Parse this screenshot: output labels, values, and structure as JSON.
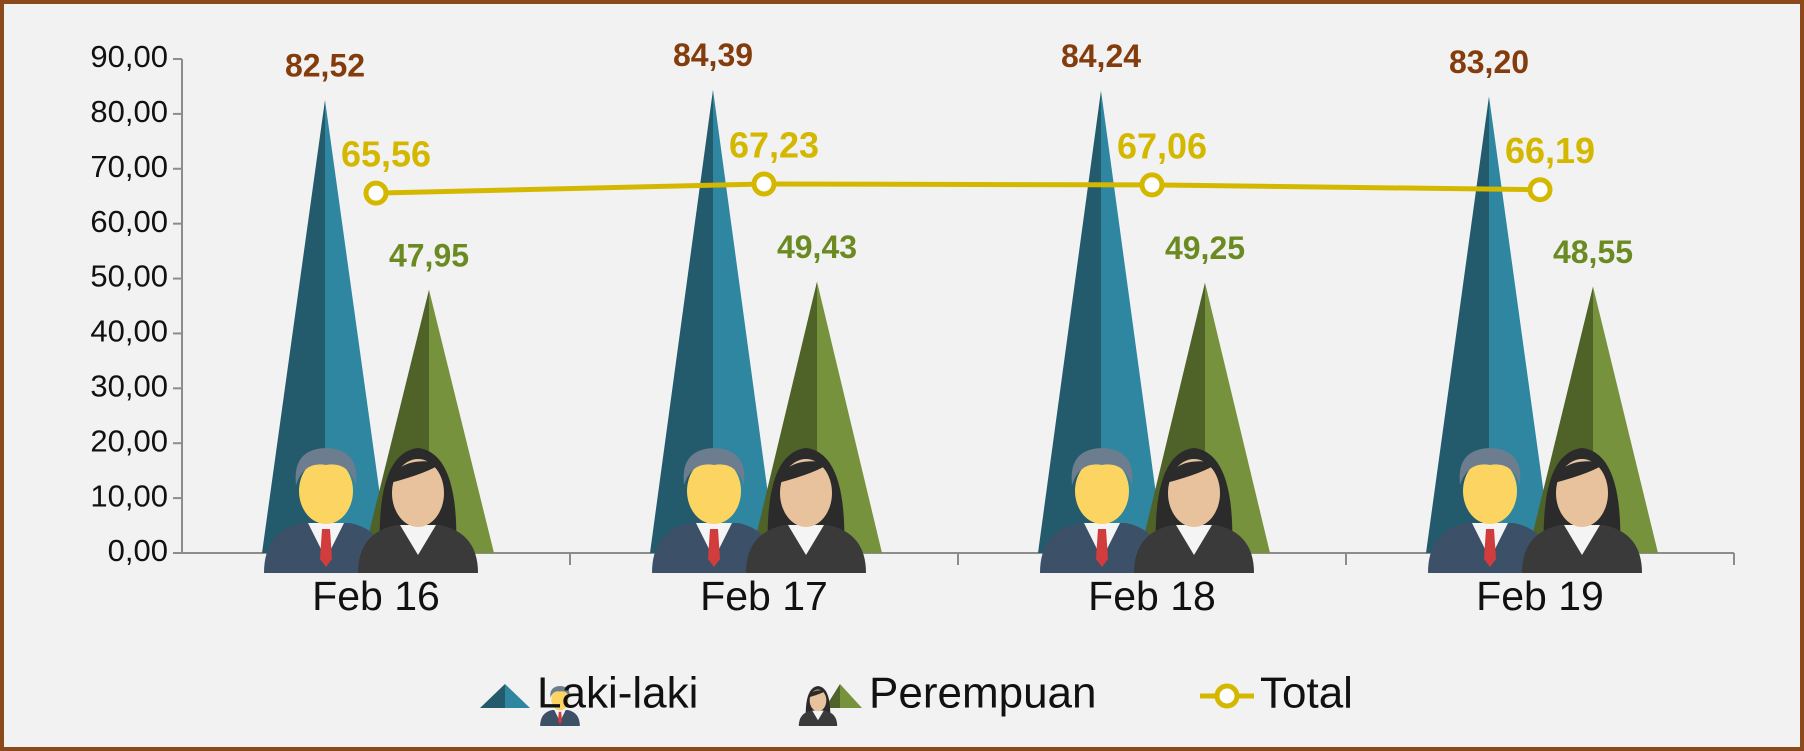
{
  "chart_data": {
    "type": "pyramid-line",
    "categories": [
      "Feb 16",
      "Feb 17",
      "Feb 18",
      "Feb 19"
    ],
    "series": [
      {
        "name": "Laki-laki",
        "type": "pyramid",
        "color": "#2e86a0",
        "dark_color": "#235a6c",
        "label_color": "#843c0c",
        "values": [
          82.52,
          84.39,
          84.24,
          83.2
        ],
        "value_labels": [
          "82,52",
          "84,39",
          "84,24",
          "83,20"
        ]
      },
      {
        "name": "Perempuan",
        "type": "pyramid",
        "color": "#76923c",
        "dark_color": "#4f6228",
        "label_color": "#6b8a22",
        "values": [
          47.95,
          49.43,
          49.25,
          48.55
        ],
        "value_labels": [
          "47,95",
          "49,43",
          "49,25",
          "48,55"
        ]
      },
      {
        "name": "Total",
        "type": "line",
        "color": "#d4b800",
        "label_color": "#d4b800",
        "values": [
          65.56,
          67.23,
          67.06,
          66.19
        ],
        "value_labels": [
          "65,56",
          "67,23",
          "67,06",
          "66,19"
        ]
      }
    ],
    "ylim": [
      0,
      90
    ],
    "yticks": [
      {
        "value": 0,
        "label": "0,00"
      },
      {
        "value": 10,
        "label": "10,00"
      },
      {
        "value": 20,
        "label": "20,00"
      },
      {
        "value": 30,
        "label": "30,00"
      },
      {
        "value": 40,
        "label": "40,00"
      },
      {
        "value": 50,
        "label": "50,00"
      },
      {
        "value": 60,
        "label": "60,00"
      },
      {
        "value": 70,
        "label": "70,00"
      },
      {
        "value": 80,
        "label": "80,00"
      },
      {
        "value": 90,
        "label": "90,00"
      }
    ],
    "legend": "bottom"
  }
}
